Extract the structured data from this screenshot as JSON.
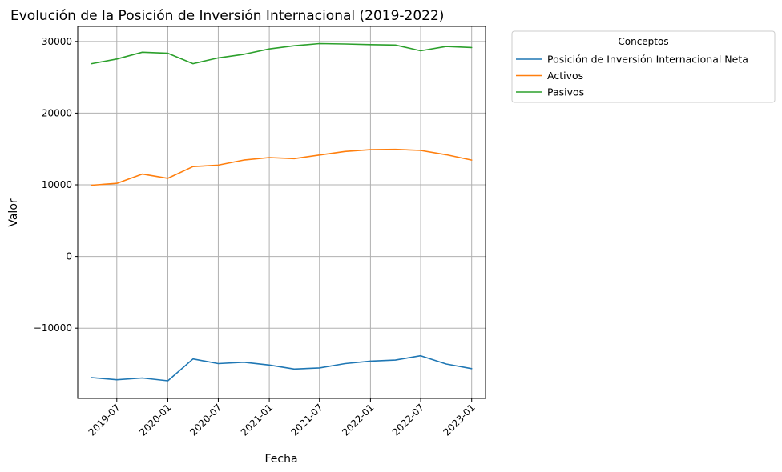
{
  "chart_data": {
    "type": "line",
    "title": "Evolución de la Posición de Inversión Internacional (2019-2022)",
    "xlabel": "Fecha",
    "ylabel": "Valor",
    "grid": true,
    "legend_placement": "outside-top-right",
    "legend_title": "Conceptos",
    "x": [
      "2019-04",
      "2019-07",
      "2019-10",
      "2020-01",
      "2020-04",
      "2020-07",
      "2020-10",
      "2021-01",
      "2021-04",
      "2021-07",
      "2021-10",
      "2022-01",
      "2022-04",
      "2022-07",
      "2022-10",
      "2023-01"
    ],
    "x_ticks": [
      "2019-07",
      "2020-01",
      "2020-07",
      "2021-01",
      "2021-07",
      "2022-01",
      "2022-07",
      "2023-01"
    ],
    "y_ticks": [
      -10000,
      0,
      10000,
      20000,
      30000
    ],
    "y_tick_labels": [
      "−10000",
      "0",
      "10000",
      "20000",
      "30000"
    ],
    "ylim": [
      -19800,
      32100
    ],
    "xlim": [
      "2019-02-10",
      "2023-02-20"
    ],
    "series": [
      {
        "name": "Posición de Inversión Internacional Neta",
        "color": "#1f77b4",
        "values": [
          -16900,
          -17200,
          -16950,
          -17350,
          -14300,
          -14950,
          -14750,
          -15150,
          -15700,
          -15550,
          -14950,
          -14600,
          -14450,
          -13850,
          -15000,
          -15650
        ]
      },
      {
        "name": "Activos",
        "color": "#ff7f0e",
        "values": [
          9950,
          10200,
          11500,
          10900,
          12550,
          12750,
          13450,
          13800,
          13650,
          14150,
          14650,
          14900,
          14950,
          14800,
          14200,
          13450
        ]
      },
      {
        "name": "Pasivos",
        "color": "#2ca02c",
        "values": [
          26900,
          27550,
          28500,
          28350,
          26900,
          27700,
          28200,
          28950,
          29400,
          29700,
          29650,
          29550,
          29500,
          28700,
          29300,
          29150
        ]
      }
    ]
  }
}
